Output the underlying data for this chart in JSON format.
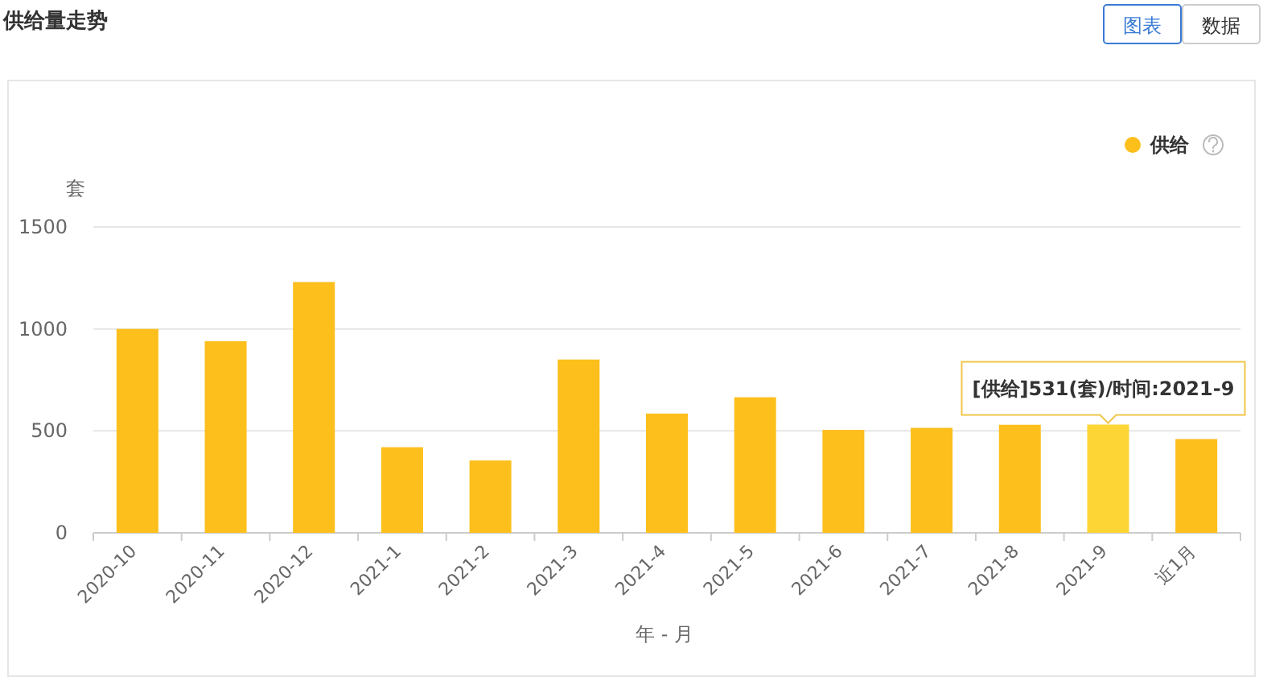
{
  "chart_data": {
    "type": "bar",
    "title": "供给量走势",
    "ylabel": "套",
    "xlabel": "年 - 月",
    "categories": [
      "2020-10",
      "2020-11",
      "2020-12",
      "2021-1",
      "2021-2",
      "2021-3",
      "2021-4",
      "2021-5",
      "2021-6",
      "2021-7",
      "2021-8",
      "2021-9",
      "近1月"
    ],
    "series": [
      {
        "name": "供给",
        "color": "#fcbf1c",
        "colors": [
          "#fcbf1c",
          "#fcbf1c",
          "#fcbf1c",
          "#fcbf1c",
          "#fcbf1c",
          "#fcbf1c",
          "#fcbf1c",
          "#fcbf1c",
          "#fcbf1c",
          "#fcbf1c",
          "#fcbf1c",
          "#fdd535",
          "#fcbf1c"
        ],
        "values": [
          1000,
          940,
          1230,
          420,
          355,
          850,
          585,
          665,
          505,
          515,
          530,
          531,
          460
        ]
      }
    ],
    "ylim": [
      0,
      1500
    ],
    "yticks": [
      0,
      500,
      1000,
      1500
    ],
    "grid": "y",
    "legend": "top right",
    "annotations": [
      {
        "text": "[供给]531(套)/时间:2021-9",
        "x": "2021-9",
        "y": 531
      },
      "图表",
      "数据"
    ]
  }
}
